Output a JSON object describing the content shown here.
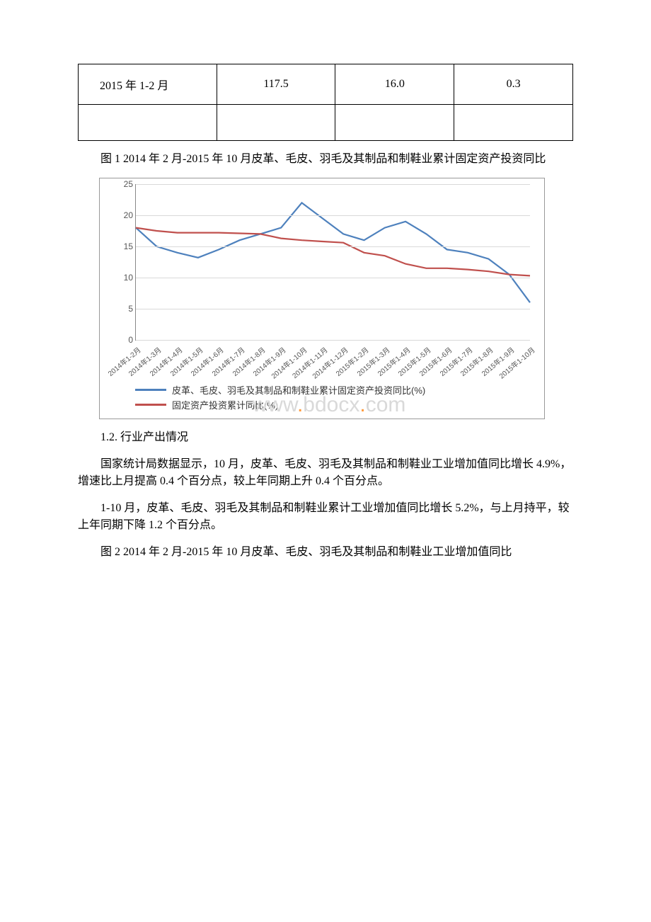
{
  "table": {
    "columns_width": [
      "28%",
      "24%",
      "24%",
      "24%"
    ],
    "rows": [
      [
        "2015 年 1-2 月",
        "117.5",
        "16.0",
        "0.3"
      ],
      [
        "",
        "",
        "",
        ""
      ]
    ]
  },
  "figure1_caption": "图 1 2014 年 2 月-2015 年 10 月皮革、毛皮、羽毛及其制品和制鞋业累计固定资产投资同比",
  "chart1": {
    "type": "line",
    "ylim": [
      0,
      25
    ],
    "ytick_step": 5,
    "background_color": "#ffffff",
    "grid_color": "#d9d9d9",
    "axis_color": "#888888",
    "label_fontsize": 12,
    "xlabels": [
      "2014年1-2月",
      "2014年1-3月",
      "2014年1-4月",
      "2014年1-5月",
      "2014年1-6月",
      "2014年1-7月",
      "2014年1-8月",
      "2014年1-9月",
      "2014年1-10月",
      "2014年1-11月",
      "2014年1-12月",
      "2015年1-2月",
      "2015年1-3月",
      "2015年1-4月",
      "2015年1-5月",
      "2015年1-6月",
      "2015年1-7月",
      "2015年1-8月",
      "2015年1-9月",
      "2015年1-10月"
    ],
    "series": [
      {
        "name": "皮革、毛皮、羽毛及其制品和制鞋业累计固定资产投资同比(%)",
        "color": "#4e81bd",
        "line_width": 2.2,
        "data": [
          18,
          15,
          14,
          13.2,
          14.5,
          16,
          17,
          18,
          22,
          19.5,
          17,
          16,
          18,
          19,
          17,
          14.5,
          14,
          13,
          10.5,
          6
        ]
      },
      {
        "name": "固定资产投资累计同比(%)",
        "color": "#c0504d",
        "line_width": 2.2,
        "data": [
          18,
          17.5,
          17.2,
          17.2,
          17.2,
          17.1,
          17,
          16.3,
          16,
          15.8,
          15.6,
          14,
          13.5,
          12.2,
          11.5,
          11.5,
          11.3,
          11,
          10.5,
          10.3
        ]
      }
    ]
  },
  "section_heading": "1.2. 行业产出情况",
  "para1": "国家统计局数据显示，10 月，皮革、毛皮、羽毛及其制品和制鞋业工业增加值同比增长 4.9%，增速比上月提高 0.4 个百分点，较上年同期上升 0.4 个百分点。",
  "para2": "1-10 月，皮革、毛皮、羽毛及其制品和制鞋业累计工业增加值同比增长 5.2%，与上月持平，较上年同期下降 1.2 个百分点。",
  "figure2_caption": "图 2 2014 年 2 月-2015 年 10 月皮革、毛皮、羽毛及其制品和制鞋业工业增加值同比",
  "watermark": {
    "left": "www",
    "mid": "bdocx",
    "right": "com",
    "dot": "."
  }
}
